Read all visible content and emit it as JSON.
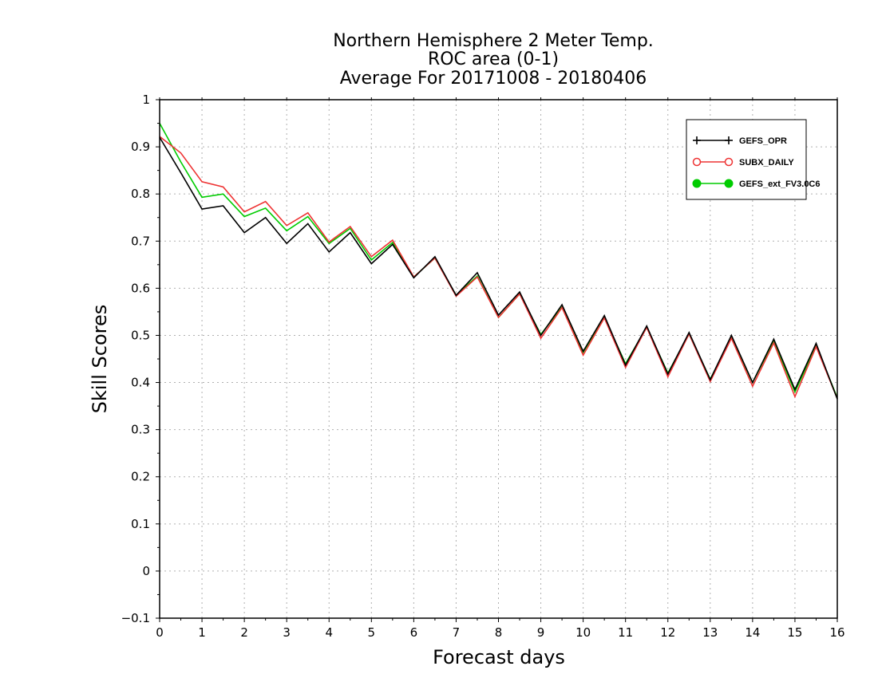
{
  "chart_data": {
    "type": "line",
    "title": [
      "Northern Hemisphere 2 Meter Temp.",
      "ROC area (0-1)",
      "Average For 20171008 - 20180406"
    ],
    "xlabel": "Forecast days",
    "ylabel": "Skill Scores",
    "xlim": [
      0,
      16
    ],
    "ylim": [
      -0.1,
      1.0
    ],
    "x_ticks": [
      0,
      1,
      2,
      3,
      4,
      5,
      6,
      7,
      8,
      9,
      10,
      11,
      12,
      13,
      14,
      15,
      16
    ],
    "y_ticks": [
      -0.1,
      0,
      0.1,
      0.2,
      0.3,
      0.4,
      0.5,
      0.6,
      0.7,
      0.8,
      0.9,
      1
    ],
    "grid": true,
    "legend_position": "top-right",
    "x": [
      0,
      0.5,
      1,
      1.5,
      2,
      2.5,
      3,
      3.5,
      4,
      4.5,
      5,
      5.5,
      6,
      6.5,
      7,
      7.5,
      8,
      8.5,
      9,
      9.5,
      10,
      10.5,
      11,
      11.5,
      12,
      12.5,
      13,
      13.5,
      14,
      14.5,
      15,
      15.5,
      16
    ],
    "series": [
      {
        "name": "GEFS_OPR",
        "color": "#000000",
        "marker": "plus",
        "values": [
          0.92,
          0.845,
          0.768,
          0.775,
          0.718,
          0.75,
          0.695,
          0.737,
          0.677,
          0.718,
          0.652,
          0.693,
          0.622,
          0.667,
          0.585,
          0.633,
          0.543,
          0.592,
          0.5,
          0.565,
          0.466,
          0.542,
          0.437,
          0.52,
          0.418,
          0.506,
          0.406,
          0.5,
          0.4,
          0.492,
          0.385,
          0.483,
          0.365
        ]
      },
      {
        "name": "SUBX_DAILY",
        "color": "#ee3333",
        "marker": "open-circle",
        "values": [
          0.922,
          0.887,
          0.826,
          0.815,
          0.762,
          0.784,
          0.733,
          0.76,
          0.698,
          0.731,
          0.667,
          0.702,
          0.624,
          0.664,
          0.583,
          0.624,
          0.538,
          0.588,
          0.494,
          0.559,
          0.458,
          0.537,
          0.432,
          0.517,
          0.412,
          0.503,
          0.402,
          0.494,
          0.392,
          0.484,
          0.37,
          0.476,
          0.366
        ]
      },
      {
        "name": "GEFS_ext_FV3.0C6",
        "color": "#00cc00",
        "marker": "filled-circle",
        "values": [
          0.95,
          0.868,
          0.793,
          0.8,
          0.752,
          0.77,
          0.722,
          0.752,
          0.695,
          0.727,
          0.66,
          0.697,
          0.624,
          0.664,
          0.585,
          0.626,
          0.538,
          0.588,
          0.502,
          0.56,
          0.464,
          0.538,
          0.44,
          0.517,
          0.42,
          0.503,
          0.407,
          0.496,
          0.4,
          0.488,
          0.38,
          0.478,
          0.368
        ]
      }
    ]
  }
}
